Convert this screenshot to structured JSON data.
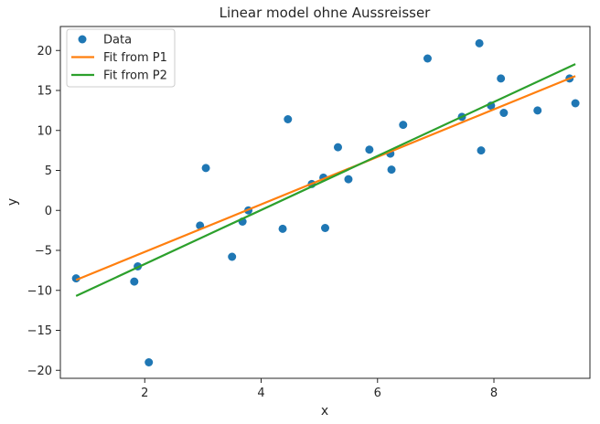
{
  "chart_data": {
    "type": "scatter",
    "title": "Linear model ohne Aussreisser",
    "xlabel": "x",
    "ylabel": "y",
    "xlim": [
      0.55,
      9.65
    ],
    "ylim": [
      -21,
      23
    ],
    "xticks": [
      2,
      4,
      6,
      8
    ],
    "yticks": [
      -20,
      -15,
      -10,
      -5,
      0,
      5,
      10,
      15,
      20
    ],
    "grid": false,
    "legend": "top-left",
    "colors": {
      "data": "#1f77b4",
      "fit_p1": "#ff7f0e",
      "fit_p2": "#2ca02c"
    },
    "series": [
      {
        "name": "Data",
        "kind": "points",
        "x": [
          0.82,
          1.82,
          1.88,
          2.07,
          2.95,
          3.05,
          3.5,
          3.68,
          3.78,
          4.37,
          4.46,
          4.87,
          5.07,
          5.1,
          5.32,
          5.5,
          5.86,
          6.22,
          6.24,
          6.44,
          6.86,
          7.45,
          7.75,
          7.78,
          7.95,
          8.12,
          8.17,
          8.75,
          9.3,
          9.4
        ],
        "y": [
          -8.5,
          -8.9,
          -7.0,
          -19.0,
          -1.9,
          5.3,
          -5.8,
          -1.4,
          0.0,
          -2.3,
          11.4,
          3.3,
          4.1,
          -2.2,
          7.9,
          3.9,
          7.6,
          7.1,
          5.1,
          10.7,
          19.0,
          11.7,
          20.9,
          7.5,
          13.1,
          16.5,
          12.2,
          12.5,
          16.5,
          13.4
        ]
      },
      {
        "name": "Fit from P1",
        "kind": "line",
        "x": [
          0.82,
          9.4
        ],
        "y": [
          -8.7,
          16.8
        ]
      },
      {
        "name": "Fit from P2",
        "kind": "line",
        "x": [
          0.82,
          9.4
        ],
        "y": [
          -10.7,
          18.3
        ]
      }
    ]
  }
}
